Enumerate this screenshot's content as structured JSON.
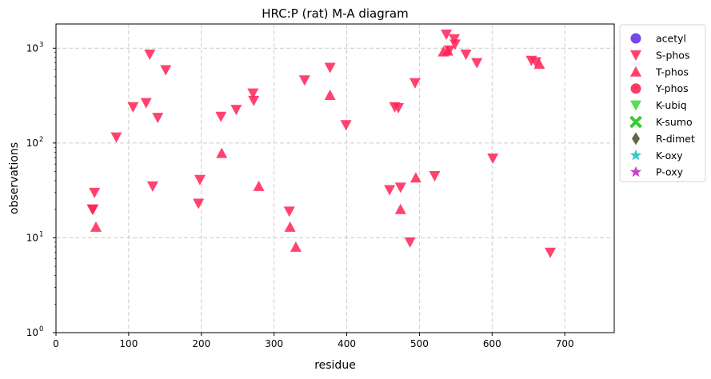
{
  "chart_data": {
    "type": "scatter",
    "title": "HRC:P (rat) M-A diagram",
    "xlabel": "residue",
    "ylabel": "observations",
    "xlim": [
      0,
      768
    ],
    "ylim": [
      1,
      1800
    ],
    "yscale": "log",
    "grid": true,
    "legend_position": "outside-right",
    "x_ticks": [
      0,
      100,
      200,
      300,
      400,
      500,
      600,
      700
    ],
    "y_ticks": [
      {
        "value": 1,
        "label": "10",
        "exp": "0"
      },
      {
        "value": 10,
        "label": "10",
        "exp": "1"
      },
      {
        "value": 100,
        "label": "10",
        "exp": "2"
      },
      {
        "value": 1000,
        "label": "10",
        "exp": "3"
      }
    ],
    "series": [
      {
        "name": "acetyl",
        "marker": "circle",
        "color": "#6633ee",
        "points": []
      },
      {
        "name": "S-phos",
        "marker": "triangle-down",
        "color": "#ff2255",
        "points": [
          [
            50,
            20
          ],
          [
            51,
            20
          ],
          [
            53,
            30
          ],
          [
            83,
            115
          ],
          [
            106,
            240
          ],
          [
            124,
            265
          ],
          [
            129,
            860
          ],
          [
            133,
            35
          ],
          [
            140,
            185
          ],
          [
            151,
            590
          ],
          [
            198,
            41
          ],
          [
            196,
            23
          ],
          [
            227,
            190
          ],
          [
            248,
            225
          ],
          [
            271,
            335
          ],
          [
            272,
            280
          ],
          [
            321,
            19
          ],
          [
            342,
            460
          ],
          [
            377,
            625
          ],
          [
            399,
            155
          ],
          [
            459,
            32
          ],
          [
            466,
            240
          ],
          [
            471,
            235
          ],
          [
            474,
            34
          ],
          [
            487,
            9
          ],
          [
            494,
            430
          ],
          [
            521,
            45
          ],
          [
            537,
            1400
          ],
          [
            541,
            950
          ],
          [
            548,
            1250
          ],
          [
            549,
            1100
          ],
          [
            564,
            860
          ],
          [
            579,
            700
          ],
          [
            601,
            69
          ],
          [
            654,
            740
          ],
          [
            660,
            715
          ],
          [
            680,
            7
          ]
        ]
      },
      {
        "name": "T-phos",
        "marker": "triangle-up",
        "color": "#ff2255",
        "points": [
          [
            55,
            13
          ],
          [
            228,
            78
          ],
          [
            279,
            35
          ],
          [
            322,
            13
          ],
          [
            330,
            8
          ],
          [
            377,
            320
          ],
          [
            474,
            20
          ],
          [
            495,
            43
          ],
          [
            533,
            920
          ],
          [
            539,
            940
          ],
          [
            665,
            680
          ]
        ]
      },
      {
        "name": "Y-phos",
        "marker": "circle",
        "color": "#ff2255",
        "points": []
      },
      {
        "name": "K-ubiq",
        "marker": "triangle-down",
        "color": "#33dd33",
        "points": []
      },
      {
        "name": "K-sumo",
        "marker": "x",
        "color": "#33cc33",
        "points": []
      },
      {
        "name": "R-dimet",
        "marker": "diamond",
        "color": "#666644",
        "points": []
      },
      {
        "name": "K-oxy",
        "marker": "star",
        "color": "#33cccc",
        "points": []
      },
      {
        "name": "P-oxy",
        "marker": "star",
        "color": "#cc44cc",
        "points": []
      }
    ]
  }
}
